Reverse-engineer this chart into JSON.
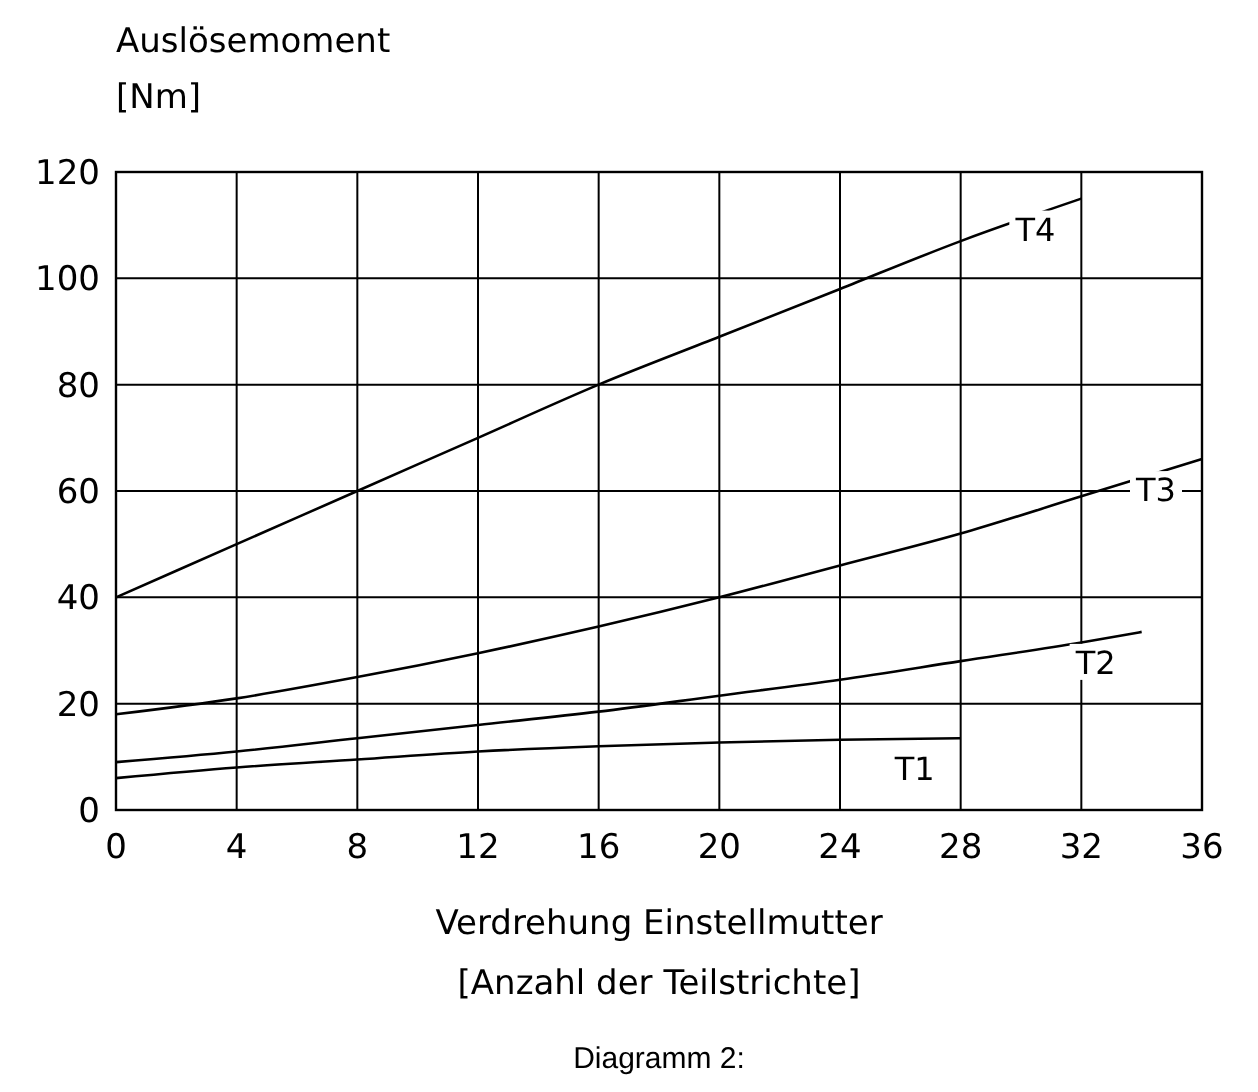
{
  "chart_data": {
    "type": "line",
    "ylabel": "Auslösemoment\n[Nm]",
    "xlabel": "Verdrehung Einstellmutter\n[Anzahl der Teilstrichte]",
    "annotations": [
      "Diagramm 2:"
    ],
    "xlim": [
      0,
      36
    ],
    "xticks": [
      0,
      4,
      8,
      12,
      16,
      20,
      24,
      28,
      32,
      36
    ],
    "ylim": [
      0,
      120
    ],
    "yticks": [
      0,
      20,
      40,
      60,
      80,
      100,
      120
    ],
    "grid": true,
    "series": [
      {
        "name": "T4",
        "color": "#000000",
        "x": [
          0,
          4,
          8,
          12,
          16,
          20,
          24,
          28,
          32
        ],
        "values": [
          40,
          50,
          60,
          70,
          80,
          89,
          98,
          107,
          115
        ]
      },
      {
        "name": "T3",
        "color": "#000000",
        "x": [
          0,
          4,
          8,
          12,
          16,
          20,
          24,
          28,
          32,
          36
        ],
        "values": [
          18,
          21,
          25,
          29.5,
          34.5,
          40,
          46,
          52,
          59,
          66
        ]
      },
      {
        "name": "T2",
        "color": "#000000",
        "x": [
          0,
          4,
          8,
          12,
          16,
          20,
          24,
          28,
          32,
          34
        ],
        "values": [
          9,
          11,
          13.5,
          16,
          18.5,
          21.5,
          24.5,
          28,
          31.5,
          33.5
        ]
      },
      {
        "name": "T1",
        "color": "#000000",
        "x": [
          0,
          4,
          8,
          12,
          16,
          20,
          24,
          28
        ],
        "values": [
          6,
          8,
          9.5,
          11,
          12,
          12.7,
          13.2,
          13.5
        ]
      }
    ]
  }
}
